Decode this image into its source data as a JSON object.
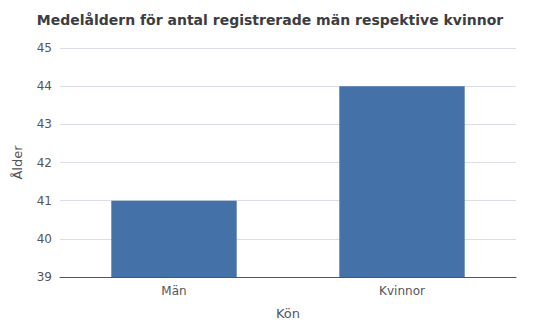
{
  "chart_data": {
    "type": "bar",
    "title": "Medelåldern för antal registrerade män respektive kvinnor",
    "xlabel": "Kön",
    "ylabel": "Ålder",
    "categories": [
      "Män",
      "Kvinnor"
    ],
    "values": [
      41,
      44
    ],
    "color": "#4472a8",
    "ylim": [
      39,
      45
    ],
    "yticks": [
      39,
      40,
      41,
      42,
      43,
      44,
      45
    ],
    "grid": true
  }
}
